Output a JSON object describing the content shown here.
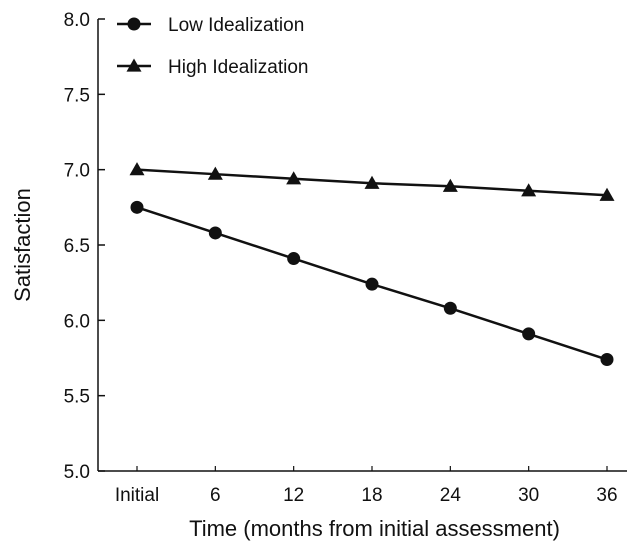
{
  "chart_data": {
    "type": "line",
    "title": "",
    "xlabel": "Time (months from initial assessment)",
    "ylabel": "Satisfaction",
    "categories": [
      "Initial",
      "6",
      "12",
      "18",
      "24",
      "30",
      "36"
    ],
    "ylim": [
      5.0,
      8.0
    ],
    "yticks": [
      "5.0",
      "5.5",
      "6.0",
      "6.5",
      "7.0",
      "7.5",
      "8.0"
    ],
    "grid": false,
    "legend_position": "top-left",
    "series": [
      {
        "name": "Low Idealization",
        "marker": "circle",
        "color": "#111111",
        "values": [
          6.75,
          6.58,
          6.41,
          6.24,
          6.08,
          5.91,
          5.74
        ]
      },
      {
        "name": "High Idealization",
        "marker": "triangle",
        "color": "#111111",
        "values": [
          7.0,
          6.97,
          6.94,
          6.91,
          6.89,
          6.86,
          6.83
        ]
      }
    ]
  }
}
